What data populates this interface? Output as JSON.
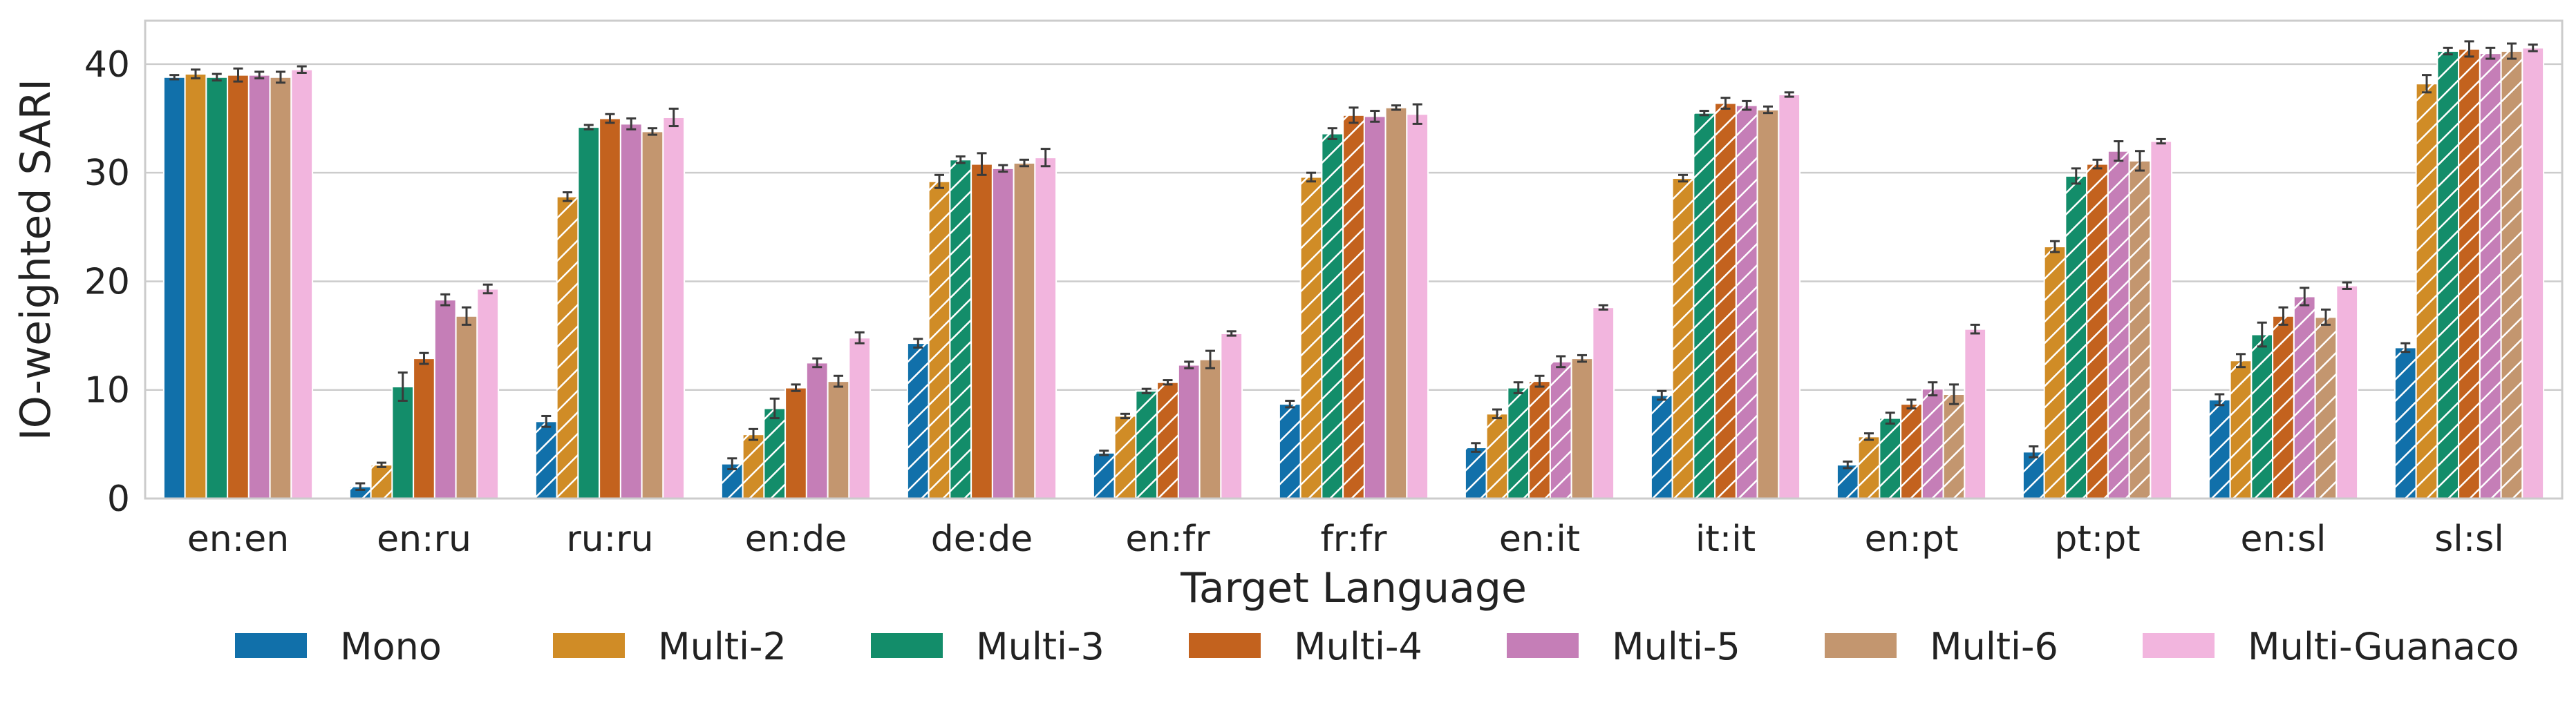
{
  "chart_data": {
    "type": "bar",
    "title": "",
    "xlabel": "Target Language",
    "ylabel": "IO-weighted SARI",
    "ylim": [
      0,
      44
    ],
    "yticks": [
      0,
      10,
      20,
      30,
      40
    ],
    "grid": true,
    "legend_position": "bottom",
    "categories": [
      "en:en",
      "en:ru",
      "ru:ru",
      "en:de",
      "de:de",
      "en:fr",
      "fr:fr",
      "en:it",
      "it:it",
      "en:pt",
      "pt:pt",
      "en:sl",
      "sl:sl"
    ],
    "series": [
      {
        "name": "Mono",
        "color": "#1170aa",
        "values": [
          38.8,
          1.1,
          7.1,
          3.2,
          14.3,
          4.2,
          8.7,
          4.7,
          9.5,
          3.1,
          4.3,
          9.1,
          13.9
        ],
        "errors": [
          0.2,
          0.3,
          0.5,
          0.5,
          0.4,
          0.2,
          0.3,
          0.4,
          0.4,
          0.3,
          0.5,
          0.5,
          0.4
        ],
        "hatched": [
          false,
          true,
          true,
          true,
          true,
          true,
          true,
          true,
          true,
          true,
          true,
          true,
          true
        ]
      },
      {
        "name": "Multi-2",
        "color": "#d08c26",
        "values": [
          39.1,
          3.1,
          27.8,
          5.9,
          29.2,
          7.6,
          29.6,
          7.8,
          29.5,
          5.7,
          23.2,
          12.7,
          38.2
        ],
        "errors": [
          0.4,
          0.2,
          0.4,
          0.5,
          0.6,
          0.2,
          0.4,
          0.4,
          0.3,
          0.3,
          0.5,
          0.6,
          0.8
        ],
        "hatched": [
          false,
          true,
          true,
          true,
          true,
          true,
          true,
          true,
          true,
          true,
          true,
          true,
          true
        ]
      },
      {
        "name": "Multi-3",
        "color": "#138d6a",
        "values": [
          38.8,
          10.3,
          34.2,
          8.3,
          31.2,
          9.9,
          33.6,
          10.2,
          35.5,
          7.4,
          29.7,
          15.1,
          41.2
        ],
        "errors": [
          0.3,
          1.3,
          0.2,
          0.9,
          0.3,
          0.2,
          0.5,
          0.5,
          0.2,
          0.5,
          0.7,
          1.1,
          0.3
        ],
        "hatched": [
          false,
          false,
          false,
          true,
          true,
          true,
          true,
          true,
          true,
          true,
          true,
          true,
          true
        ]
      },
      {
        "name": "Multi-4",
        "color": "#c3621e",
        "values": [
          39.0,
          12.9,
          35.0,
          10.2,
          30.8,
          10.7,
          35.3,
          10.8,
          36.4,
          8.7,
          30.8,
          16.8,
          41.4
        ],
        "errors": [
          0.6,
          0.5,
          0.4,
          0.3,
          1.0,
          0.2,
          0.7,
          0.5,
          0.5,
          0.4,
          0.4,
          0.8,
          0.7
        ],
        "hatched": [
          false,
          false,
          false,
          false,
          false,
          true,
          true,
          true,
          true,
          true,
          true,
          true,
          true
        ]
      },
      {
        "name": "Multi-5",
        "color": "#c57eb7",
        "values": [
          39.0,
          18.3,
          34.5,
          12.5,
          30.4,
          12.3,
          35.2,
          12.6,
          36.2,
          10.1,
          32.0,
          18.6,
          41.0
        ],
        "errors": [
          0.3,
          0.5,
          0.5,
          0.4,
          0.3,
          0.3,
          0.5,
          0.5,
          0.4,
          0.6,
          0.9,
          0.8,
          0.5
        ],
        "hatched": [
          false,
          false,
          false,
          false,
          false,
          false,
          false,
          true,
          true,
          true,
          true,
          true,
          true
        ]
      },
      {
        "name": "Multi-6",
        "color": "#c3966f",
        "values": [
          38.8,
          16.8,
          33.8,
          10.8,
          30.9,
          12.8,
          36.0,
          12.9,
          35.8,
          9.6,
          31.1,
          16.7,
          41.2
        ],
        "errors": [
          0.5,
          0.8,
          0.3,
          0.5,
          0.3,
          0.8,
          0.2,
          0.3,
          0.3,
          0.9,
          0.9,
          0.7,
          0.7
        ],
        "hatched": [
          false,
          false,
          false,
          false,
          false,
          false,
          false,
          false,
          false,
          true,
          true,
          true,
          true
        ]
      },
      {
        "name": "Multi-Guanaco",
        "color": "#f2b5de",
        "values": [
          39.5,
          19.3,
          35.1,
          14.8,
          31.4,
          15.2,
          35.4,
          17.6,
          37.2,
          15.6,
          32.9,
          19.6,
          41.5
        ],
        "errors": [
          0.3,
          0.4,
          0.8,
          0.5,
          0.8,
          0.2,
          0.9,
          0.2,
          0.2,
          0.4,
          0.2,
          0.3,
          0.3
        ],
        "hatched": [
          false,
          false,
          false,
          false,
          false,
          false,
          false,
          false,
          false,
          false,
          false,
          false,
          false
        ]
      }
    ]
  }
}
